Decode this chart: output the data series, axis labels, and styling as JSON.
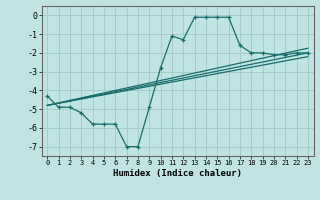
{
  "title": "",
  "xlabel": "Humidex (Indice chaleur)",
  "bg_color": "#c0e4e4",
  "grid_color": "#a8cccc",
  "line_color": "#1a6b6b",
  "xlim": [
    -0.5,
    23.5
  ],
  "ylim": [
    -7.5,
    0.5
  ],
  "xticks": [
    0,
    1,
    2,
    3,
    4,
    5,
    6,
    7,
    8,
    9,
    10,
    11,
    12,
    13,
    14,
    15,
    16,
    17,
    18,
    19,
    20,
    21,
    22,
    23
  ],
  "yticks": [
    0,
    -1,
    -2,
    -3,
    -4,
    -5,
    -6,
    -7
  ],
  "line1_x": [
    0,
    1,
    2,
    3,
    4,
    5,
    6,
    7,
    8,
    9,
    10,
    11,
    12,
    13,
    14,
    15,
    16,
    17,
    18,
    19,
    20,
    21,
    22,
    23
  ],
  "line1_y": [
    -4.3,
    -4.9,
    -4.9,
    -5.2,
    -5.8,
    -5.8,
    -5.8,
    -7.0,
    -7.0,
    -4.9,
    -2.8,
    -1.1,
    -1.3,
    -0.1,
    -0.1,
    -0.1,
    -0.1,
    -1.6,
    -2.0,
    -2.0,
    -2.1,
    -2.1,
    -2.0,
    -2.0
  ],
  "line2_x": [
    0,
    23
  ],
  "line2_y": [
    -4.8,
    -2.0
  ],
  "line3_x": [
    0,
    23
  ],
  "line3_y": [
    -4.8,
    -2.2
  ],
  "line4_x": [
    0,
    23
  ],
  "line4_y": [
    -4.8,
    -1.75
  ],
  "marker": "+"
}
